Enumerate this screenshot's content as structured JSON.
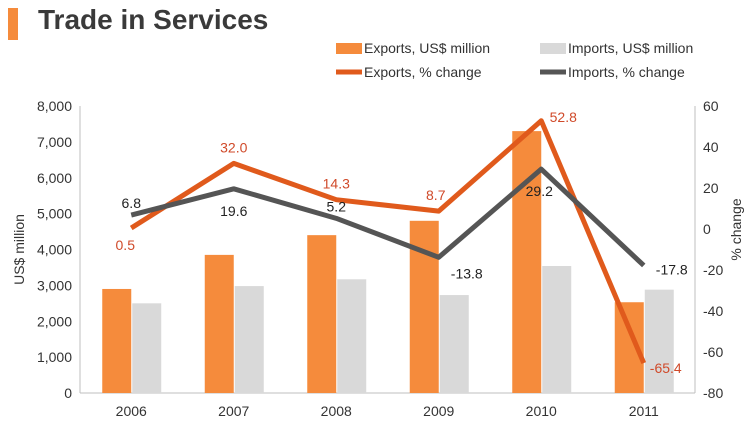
{
  "title": "Trade in Services",
  "chart_data": {
    "type": "bar",
    "title": "Trade in Services",
    "categories": [
      "2006",
      "2007",
      "2008",
      "2009",
      "2010",
      "2011"
    ],
    "series": [
      {
        "name": "Exports, US$ million",
        "kind": "bar",
        "axis": "left",
        "color": "#f58b3c",
        "values": [
          2900,
          3850,
          4400,
          4800,
          7300,
          2530
        ]
      },
      {
        "name": "Imports, US$ million",
        "kind": "bar",
        "axis": "left",
        "color": "#d9d9d9",
        "values": [
          2500,
          2980,
          3170,
          2730,
          3540,
          2880
        ]
      },
      {
        "name": "Exports, % change",
        "kind": "line",
        "axis": "right",
        "color": "#e05a1c",
        "values": [
          0.5,
          32.0,
          14.3,
          8.7,
          52.8,
          -65.4
        ],
        "labels": [
          "0.5",
          "32.0",
          "14.3",
          "8.7",
          "52.8",
          "-65.4"
        ]
      },
      {
        "name": "Imports, % change",
        "kind": "line",
        "axis": "right",
        "color": "#555555",
        "values": [
          6.8,
          19.6,
          5.2,
          -13.8,
          29.2,
          -17.8
        ],
        "labels": [
          "6.8",
          "19.6",
          "5.2",
          "-13.8",
          "29.2",
          "-17.8"
        ]
      }
    ],
    "ylabel": "US$ million",
    "ylim": [
      0,
      8000
    ],
    "yticks": [
      "0",
      "1,000",
      "2,000",
      "3,000",
      "4,000",
      "5,000",
      "6,000",
      "7,000",
      "8,000"
    ],
    "y2label": "% change",
    "y2lim": [
      -80,
      60
    ],
    "y2ticks": [
      "-80",
      "-60",
      "-40",
      "-20",
      "0",
      "20",
      "40",
      "60"
    ],
    "legend_position": "top-right",
    "grid": false
  }
}
